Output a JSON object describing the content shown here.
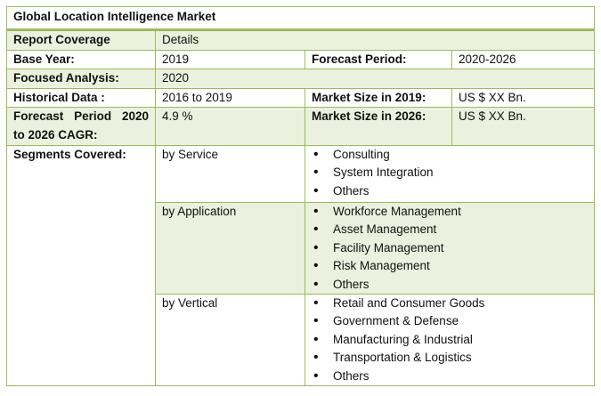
{
  "title": "Global Location Intelligence Market",
  "header": {
    "col1": "Report Coverage",
    "col2": "Details"
  },
  "base_year": {
    "label": "Base Year:",
    "value": "2019",
    "forecast_label": "Forecast Period:",
    "forecast_value": "2020-2026"
  },
  "focused": {
    "label": "Focused Analysis:",
    "value": "2020"
  },
  "historical": {
    "label": "Historical Data :",
    "value": "2016 to 2019",
    "size_label": "Market Size in 2019:",
    "size_value": "US $ XX Bn."
  },
  "cagr": {
    "label_a": "Forecast",
    "label_b": "Period",
    "label_c": "2020",
    "label_d": "to 2026 CAGR:",
    "value": "4.9 %",
    "size_label": "Market Size in 2026:",
    "size_value": "US $ XX Bn."
  },
  "segments": {
    "label": "Segments Covered:",
    "service": {
      "label": "by Service",
      "items": [
        "Consulting",
        "System Integration",
        "Others"
      ]
    },
    "application": {
      "label": "by Application",
      "items": [
        "Workforce Management",
        "Asset Management",
        "Facility Management",
        "Risk Management",
        "Others"
      ]
    },
    "vertical": {
      "label": "by Vertical",
      "items": [
        "Retail and Consumer Goods",
        "Government & Defense",
        "Manufacturing & Industrial",
        "Transportation & Logistics",
        "Others"
      ]
    }
  }
}
